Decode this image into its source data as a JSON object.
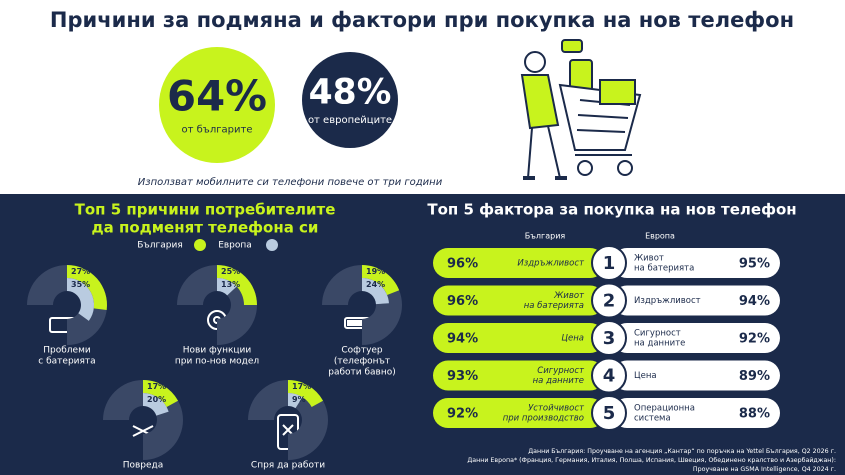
{
  "header": {
    "title": "Причини за подмяна и фактори при покупка на нов телефон"
  },
  "stats": [
    {
      "value": "64%",
      "label": "от българите"
    },
    {
      "value": "48%",
      "label": "от европейците"
    }
  ],
  "stats_caption": "Използват мобилните си телефони повече от три години",
  "reasons": {
    "title_lines": [
      "Топ 5 причини потребителите",
      "да подменят телефона си"
    ],
    "legend": [
      "България",
      "Европа"
    ],
    "colors": [
      "#c8f31d",
      "#b9cbe0"
    ],
    "items": [
      {
        "label_lines": [
          "Проблеми",
          "с батерията"
        ],
        "values": [
          27,
          35
        ],
        "value_labels": [
          "27%",
          "35%"
        ]
      },
      {
        "label_lines": [
          "Нови функции",
          "при по-нов модел"
        ],
        "values": [
          25,
          13
        ],
        "value_labels": [
          "25%",
          "13%"
        ]
      },
      {
        "label_lines": [
          "Софтуер",
          "(телефонът",
          "работи бавно)"
        ],
        "values": [
          19,
          24
        ],
        "value_labels": [
          "19%",
          "24%"
        ]
      },
      {
        "label_lines": [
          "Повреда"
        ],
        "values": [
          17,
          20
        ],
        "value_labels": [
          "17%",
          "20%"
        ]
      },
      {
        "label_lines": [
          "Спря да работи"
        ],
        "values": [
          17,
          9
        ],
        "value_labels": [
          "17%",
          "9%"
        ]
      }
    ]
  },
  "factors": {
    "title": "Топ 5 фактора за покупка на нов телефон",
    "columns": [
      "България",
      "Европа"
    ],
    "rows": [
      {
        "rank": 1,
        "bulgaria_value": "96%",
        "bulgaria_label_lines": [
          "Издръжливост"
        ],
        "europe_label_lines": [
          "Живот",
          "на батерията"
        ],
        "europe_value": "95%"
      },
      {
        "rank": 2,
        "bulgaria_value": "96%",
        "bulgaria_label_lines": [
          "Живот",
          "на батерията"
        ],
        "europe_label_lines": [
          "Издръжливост"
        ],
        "europe_value": "94%"
      },
      {
        "rank": 3,
        "bulgaria_value": "94%",
        "bulgaria_label_lines": [
          "Цена"
        ],
        "europe_label_lines": [
          "Сигурност",
          "на данните"
        ],
        "europe_value": "92%"
      },
      {
        "rank": 4,
        "bulgaria_value": "93%",
        "bulgaria_label_lines": [
          "Сигурност",
          "на данните"
        ],
        "europe_label_lines": [
          "Цена"
        ],
        "europe_value": "89%"
      },
      {
        "rank": 5,
        "bulgaria_value": "92%",
        "bulgaria_label_lines": [
          "Устойчивост",
          "при производство"
        ],
        "europe_label_lines": [
          "Операционна",
          "система"
        ],
        "europe_value": "88%"
      }
    ]
  },
  "footnotes": [
    "Данни България: Проучване на агенция „Кантар“ по поръчка на Yettel България, Q2 2026 г.",
    "Данни Европа* (Франция, Германия, Италия, Полша, Испания, Швеция, Обединено кралство и Азербайджан):",
    "Проучване на GSMA Intelligence, Q4 2024 г."
  ]
}
